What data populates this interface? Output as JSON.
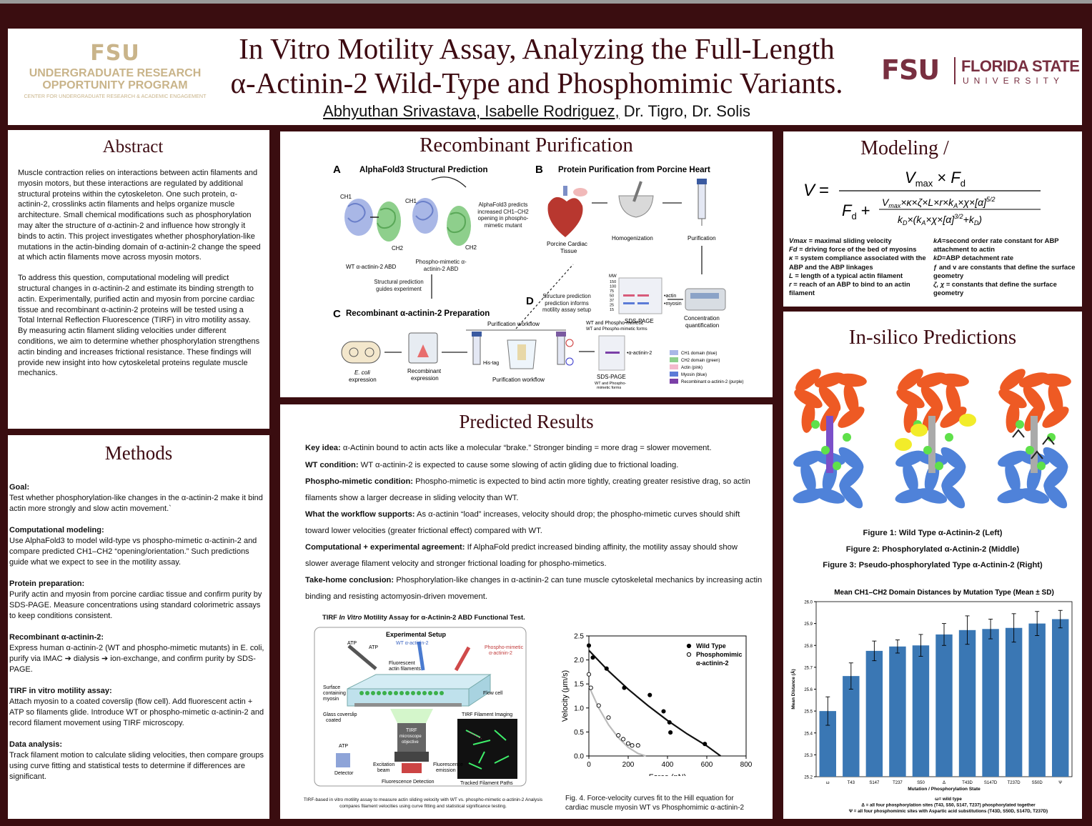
{
  "header": {
    "left_logo": {
      "mark": "FSU",
      "line1": "UNDERGRADUATE RESEARCH",
      "line2": "OPPORTUNITY PROGRAM",
      "line3": "CENTER FOR UNDERGRADUATE RESEARCH & ACADEMIC ENGAGEMENT"
    },
    "title_line1": "In Vitro Motility Assay, Analyzing the Full-Length",
    "title_line2": "α-Actinin-2 Wild-Type and Phosphomimic Variants.",
    "authors_underlined": "Abhyuthan Srivastava, Isabelle Rodriguez,",
    "authors_rest": " Dr. Tigro, Dr. Solis",
    "right_logo": {
      "mark": "FSU",
      "name": "FLORIDA STATE",
      "sub": "UNIVERSITY"
    },
    "colors": {
      "garnet": "#782f40",
      "gold": "#ceb888",
      "background": "#3a0d10"
    }
  },
  "abstract": {
    "title": "Abstract",
    "p1": "Muscle contraction relies on interactions between actin filaments and myosin motors, but these interactions are regulated by additional structural proteins within the cytoskeleton. One such protein, α-actinin-2, crosslinks actin filaments and helps organize muscle architecture. Small chemical modifications such as phosphorylation may alter the structure of α-actinin-2 and influence how strongly it binds to actin. This project investigates whether phosphorylation-like mutations in the actin-binding domain of α-actinin-2 change the speed at which actin filaments move across myosin motors.",
    "p2": "To address this question, computational modeling will predict structural changes in α-actinin-2 and estimate its binding strength to actin. Experimentally, purified actin and myosin from porcine cardiac tissue and recombinant α-actinin-2 proteins will be tested using a Total Internal Reflection Fluorescence (TIRF) in vitro motility assay. By measuring actin filament sliding velocities under different conditions, we aim to determine whether phosphorylation strengthens actin binding and increases frictional resistance. These findings will provide new insight into how cytoskeletal proteins regulate muscle mechanics."
  },
  "methods": {
    "title": "Methods",
    "sections": [
      {
        "head": "Goal:",
        "body": "Test whether phosphorylation-like changes in the α-actinin-2 make it bind actin more strongly and slow actin movement.`"
      },
      {
        "head": "Computational modeling:",
        "body": "Use AlphaFold3 to model wild-type vs phospho-mimetic α-actinin-2 and compare predicted CH1–CH2 “opening/orientation.” Such predictions guide what we expect to see in the motility assay."
      },
      {
        "head": "Protein preparation:",
        "body": "Purify actin and myosin from porcine cardiac tissue and confirm purity by SDS-PAGE. Measure concentrations using standard colorimetric assays to keep conditions consistent."
      },
      {
        "head": "Recombinant α-actinin-2:",
        "body": "Express human α-actinin-2 (WT and phospho-mimetic mutants) in E. coli, purify via IMAC ➔ dialysis ➔ ion-exchange, and confirm purity by SDS-PAGE."
      },
      {
        "head": "TIRF in vitro motility assay:",
        "body": "Attach myosin to a coated coverslip (flow cell). Add fluorescent actin + ATP so filaments glide. Introduce WT or phospho-mimetic α-actinin-2 and record filament movement using TIRF microscopy."
      },
      {
        "head": "Data analysis:",
        "body": "Track filament motion to calculate sliding velocities, then compare groups using curve fitting and statistical tests to determine if differences are significant."
      }
    ]
  },
  "purification": {
    "title": "Recombinant Purification",
    "panelA": {
      "letter": "A",
      "title": "AlphaFold3 Structural Prediction",
      "ch1": "CH1",
      "ch2": "CH2",
      "wt": "WT α-actinin-2 ABD",
      "phospho": "Phospho-mimetic α-actinin-2 ABD",
      "note": "AlphaFold3 predicts increased CH1–CH2 opening in phospho-mimetic mutant",
      "guides": "Structural prediction guides experiment"
    },
    "panelB": {
      "letter": "B",
      "title": "Protein Purification from Porcine Heart",
      "tissue": "Porcine Cardiac Tissue",
      "homog": "Homogenization",
      "purif": "Purification",
      "gel": "SDS-PAGE",
      "quant": "Concentration quantification",
      "mw": "MW",
      "mw_values": [
        "150",
        "100",
        "75",
        "50",
        "37",
        "25",
        "15"
      ],
      "actin": "actin",
      "myosin": "myosin"
    },
    "panelC": {
      "letter": "C",
      "title": "Recombinant α-actinin-2 Preparation",
      "workflow_top": "Purification workflow",
      "workflow_bottom": "Purification workflow",
      "ecoli": "E. coli",
      "ecoli_sub": "expression",
      "recomb": "Recombinant expression",
      "histag": "His-tag",
      "gel": "SDS-PAGE",
      "gel_sub": "WT and Phospho-mimetic forms",
      "top_note": "WT and Phospho-mimetic",
      "top_note2": "WT and Phospho-mimetic forms",
      "band": "α-actinin-2",
      "legend": [
        "CH1 domain (blue)",
        "CH2 domain (green)",
        "Actin (pink)",
        "Myosin (blue)",
        "Recombinant α-actinin-2 (purple)"
      ]
    },
    "panelD": {
      "letter": "D",
      "text": "Structure prediction prediction informs motility assay setup"
    }
  },
  "modeling": {
    "title": "Modeling /",
    "definitions_left": [
      {
        "sym": "Vmax",
        "text": " = maximal sliding velocity"
      },
      {
        "sym": "Fd",
        "text": " = driving force of the bed of myosins"
      },
      {
        "sym": "κ",
        "text": " = system compliance associated with the ABP and the ABP linkages"
      },
      {
        "sym": "L",
        "text": " = length of a typical actin filament"
      },
      {
        "sym": "r",
        "text": " = reach of an ABP to bind to an actin filament"
      }
    ],
    "definitions_right": [
      {
        "sym": "kA",
        "text": "=second order rate constant for ABP attachment to actin"
      },
      {
        "sym": "kD",
        "text": "=ABP detachment rate"
      },
      {
        "sym": "",
        "text": "ƒ and v are constants that define the surface geometry"
      },
      {
        "sym": "ζ, χ",
        "text": " = constants that define the surface geometry"
      }
    ]
  },
  "insilico": {
    "title": "In-silico Predictions",
    "captions": [
      "Figure 1: Wild Type α-Actinin-2  (Left)",
      "Figure 2: Phosphorylated α-Actinin-2 (Middle)",
      "Figure 3: Pseudo-phosphorylated Type α-Actinin-2 (Right)"
    ]
  },
  "results": {
    "title": "Predicted Results",
    "items": [
      {
        "head": "Key idea:",
        "body": " α-Actinin bound to actin acts like a molecular “brake.” Stronger binding = more drag = slower movement."
      },
      {
        "head": "WT condition:",
        "body": " WT α-actinin-2 is expected to cause some slowing of actin gliding due to frictional loading."
      },
      {
        "head": "Phospho-mimetic condition:",
        "body": " Phospho-mimetic is expected to bind actin more tightly, creating greater resistive drag, so actin filaments show a larger decrease in sliding velocity than WT."
      },
      {
        "head": "What the workflow supports:",
        "body": " As α-actinin “load” increases, velocity should drop; the phospho-mimetic curves should shift toward lower velocities (greater frictional effect) compared with WT."
      },
      {
        "head": "Computational + experimental agreement:",
        "body": " If AlphaFold predict increased binding affinity, the motility assay should show slower average filament velocity and stronger frictional loading for phospho-mimetics."
      },
      {
        "head": "Take-home conclusion:",
        "body": " Phosphorylation-like changes in α-actinin-2 can tune muscle cytoskeletal mechanics by increasing actin binding and resisting actomyosin-driven movement."
      }
    ]
  },
  "tirf": {
    "title_pre": "TIRF ",
    "title_em": "In Vitro",
    "title_post": " Motility Assay for α-Actinin-2 ABD Functional Test.",
    "setup": "Experimental Setup",
    "atp1": "ATP",
    "atp2": "ATP",
    "wt": "WT α-actinin-2",
    "phospho": "Phospho-mimetic α-actinin-2",
    "fluor": "Fluorescent actin filaments",
    "flow": "Flow cell",
    "surface": "Surface containing myosin",
    "glass": "Glass coverslip coated",
    "objective": "TIRF microscope objective",
    "imaging": "TIRF Filament Imaging",
    "tracked": "Tracked Filament Paths",
    "atp3": "ATP",
    "detector": "Detector",
    "excitation": "Excitation beam",
    "emission": "Fluorescence emission",
    "detection": "Fluorescence Detection",
    "caption": "TIRF-based in vitro motility assay to measure actin sliding velocity with WT vs. phospho-mimetic α-actinin-2 Analysis compares filament velocities using curve fitting and statistical significance testing."
  },
  "chart_data": [
    {
      "type": "scatter",
      "title": "",
      "xlabel": "Force (pN)",
      "ylabel": "Velocity (μm/s)",
      "xlim": [
        0,
        800
      ],
      "ylim": [
        0,
        2.5
      ],
      "xticks": [
        0,
        200,
        400,
        600,
        800
      ],
      "yticks": [
        0.0,
        0.5,
        1.0,
        1.5,
        2.0,
        2.5
      ],
      "legend": "top-right",
      "legend_labels": [
        "Wild Type",
        "Phosphomimic",
        "α-actinin-2"
      ],
      "series": [
        {
          "name": "Wild Type",
          "marker": "filled",
          "points": [
            [
              0,
              2.3
            ],
            [
              20,
              2.05
            ],
            [
              90,
              1.82
            ],
            [
              180,
              1.42
            ],
            [
              310,
              1.27
            ],
            [
              380,
              0.93
            ],
            [
              410,
              0.7
            ],
            [
              415,
              0.49
            ],
            [
              590,
              0.25
            ]
          ],
          "fit": [
            [
              0,
              2.2
            ],
            [
              100,
              1.77
            ],
            [
              200,
              1.39
            ],
            [
              300,
              1.05
            ],
            [
              400,
              0.74
            ],
            [
              500,
              0.46
            ],
            [
              600,
              0.21
            ],
            [
              670,
              0.0
            ]
          ]
        },
        {
          "name": "Phosphomimic",
          "marker": "open",
          "points": [
            [
              0,
              1.7
            ],
            [
              10,
              1.42
            ],
            [
              50,
              1.05
            ],
            [
              100,
              0.8
            ],
            [
              150,
              0.43
            ],
            [
              175,
              0.35
            ],
            [
              200,
              0.26
            ],
            [
              220,
              0.22
            ],
            [
              250,
              0.22
            ]
          ],
          "fit": [
            [
              0,
              1.45
            ],
            [
              50,
              1.0
            ],
            [
              100,
              0.65
            ],
            [
              150,
              0.38
            ],
            [
              200,
              0.18
            ],
            [
              250,
              0.05
            ],
            [
              290,
              0.0
            ]
          ]
        }
      ],
      "caption": "Fig. 4. Force-velocity curves fit to the Hill equation for cardiac muscle myosin WT vs Phosphomimic α-actinin-2"
    },
    {
      "type": "bar",
      "title": "Mean CH1–CH2 Domain Distances by Mutation Type (Mean ± SD)",
      "xlabel": "Mutation / Phosphorylation State",
      "ylabel": "Mean Distance (Å)",
      "ylim": [
        25.2,
        26.0
      ],
      "yticks": [
        "25.2",
        "25.3",
        "25.4",
        "25.5",
        "25.6",
        "25.7",
        "25.8",
        "25.9",
        "26.0"
      ],
      "categories": [
        "ω",
        "T43",
        "S147",
        "T237",
        "S50",
        "Δ",
        "T43D",
        "S147D",
        "T237D",
        "S50D",
        "Ψ"
      ],
      "values": [
        25.5,
        25.66,
        25.775,
        25.795,
        25.8,
        25.85,
        25.87,
        25.875,
        25.88,
        25.9,
        25.92
      ],
      "errors": [
        0.065,
        0.06,
        0.045,
        0.03,
        0.05,
        0.05,
        0.065,
        0.045,
        0.065,
        0.055,
        0.04
      ],
      "color": "#3a77b4",
      "notes": [
        "ω= wild type",
        "Δ = all four phosphorylation sites (T43, S50, S147, T237) phosphorylated together",
        "Ψ = all four phosphomimic sites with Aspartic acid substitutions (T43D, S50D, S147D, T237D)"
      ]
    }
  ]
}
